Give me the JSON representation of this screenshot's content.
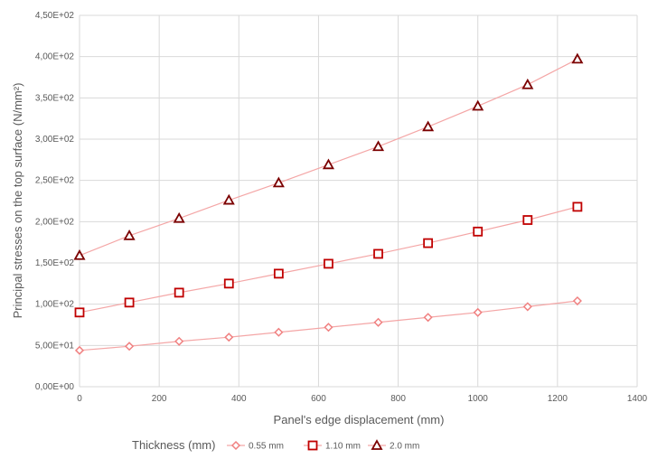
{
  "chart_data": {
    "type": "line",
    "xlabel": "Panel's edge displacement (mm)",
    "ylabel": "Principal stresses on the top surface (N/mm²)",
    "xlim": [
      0,
      1400
    ],
    "ylim": [
      0,
      450
    ],
    "x_ticks": [
      "0",
      "200",
      "400",
      "600",
      "800",
      "1000",
      "1200",
      "1400"
    ],
    "x_tick_values": [
      0,
      200,
      400,
      600,
      800,
      1000,
      1200,
      1400
    ],
    "y_ticks": [
      "0,00E+00",
      "5,00E+01",
      "1,00E+02",
      "1,50E+02",
      "2,00E+02",
      "2,50E+02",
      "3,00E+02",
      "3,50E+02",
      "4,00E+02",
      "4,50E+02"
    ],
    "y_tick_values": [
      0,
      50,
      100,
      150,
      200,
      250,
      300,
      350,
      400,
      450
    ],
    "grid": true,
    "legend_position": "bottom",
    "legend_title": "Thickness (mm)",
    "x": [
      0,
      125,
      250,
      375,
      500,
      625,
      750,
      875,
      1000,
      1125,
      1250
    ],
    "series": [
      {
        "name": "0.55 mm",
        "marker": "diamond",
        "color": "#f08080",
        "values": [
          44,
          49,
          55,
          60,
          66,
          72,
          78,
          84,
          90,
          97,
          104
        ]
      },
      {
        "name": "1.10 mm",
        "marker": "square",
        "color": "#c00000",
        "values": [
          90,
          102,
          114,
          125,
          137,
          149,
          161,
          174,
          188,
          202,
          218
        ]
      },
      {
        "name": "2.0 mm",
        "marker": "triangle",
        "color": "#7b0000",
        "values": [
          159,
          183,
          204,
          226,
          247,
          269,
          291,
          315,
          340,
          366,
          397
        ]
      }
    ]
  },
  "colors": {
    "grid": "#d9d9d9",
    "text": "#595959",
    "line": "#f4a6a6"
  }
}
